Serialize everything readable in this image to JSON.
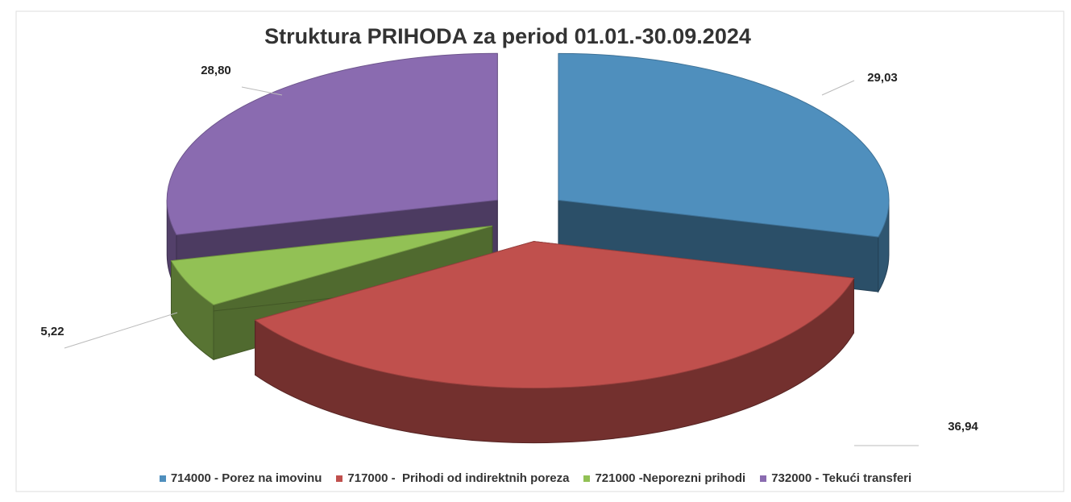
{
  "chart_data": {
    "type": "pie3d",
    "title": "Struktura PRIHODA za period 01.01.-30.09.2024",
    "categories": [
      "714000 - Porez na imovinu",
      "717000 -  Prihodi od indirektnih poreza",
      "721000 -Neporezni prihodi",
      "732000 - Tekući transferi"
    ],
    "values": [
      29.03,
      36.94,
      5.22,
      28.8
    ],
    "value_labels": [
      "29,03",
      "36,94",
      "5,22",
      "28,80"
    ],
    "colors": [
      "#4f8fbd",
      "#c0504d",
      "#92c155",
      "#8a6bb0"
    ],
    "legend": "bottom"
  }
}
